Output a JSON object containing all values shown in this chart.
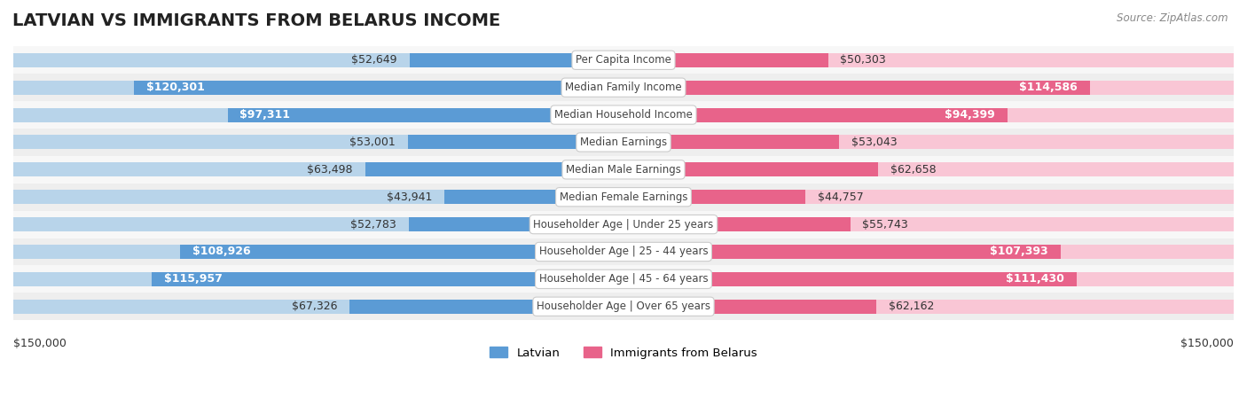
{
  "title": "LATVIAN VS IMMIGRANTS FROM BELARUS INCOME",
  "source": "Source: ZipAtlas.com",
  "categories": [
    "Per Capita Income",
    "Median Family Income",
    "Median Household Income",
    "Median Earnings",
    "Median Male Earnings",
    "Median Female Earnings",
    "Householder Age | Under 25 years",
    "Householder Age | 25 - 44 years",
    "Householder Age | 45 - 64 years",
    "Householder Age | Over 65 years"
  ],
  "latvian_values": [
    52649,
    120301,
    97311,
    53001,
    63498,
    43941,
    52783,
    108926,
    115957,
    67326
  ],
  "belarus_values": [
    50303,
    114586,
    94399,
    53043,
    62658,
    44757,
    55743,
    107393,
    111430,
    62162
  ],
  "latvian_labels": [
    "$52,649",
    "$120,301",
    "$97,311",
    "$53,001",
    "$63,498",
    "$43,941",
    "$52,783",
    "$108,926",
    "$115,957",
    "$67,326"
  ],
  "belarus_labels": [
    "$50,303",
    "$114,586",
    "$94,399",
    "$53,043",
    "$62,658",
    "$44,757",
    "$55,743",
    "$107,393",
    "$111,430",
    "$62,162"
  ],
  "max_value": 150000,
  "latvian_color_light": "#b8d4ea",
  "latvian_color_dark": "#5b9bd5",
  "belarus_color_light": "#f9c6d5",
  "belarus_color_dark": "#e8638a",
  "row_bg_light": "#f7f7f7",
  "row_bg_dark": "#eeeeee",
  "title_fontsize": 14,
  "label_fontsize": 9,
  "category_fontsize": 8.5,
  "legend_fontsize": 9.5,
  "bar_height": 0.52,
  "xlabel_left": "$150,000",
  "xlabel_right": "$150,000",
  "inside_label_threshold": 0.58
}
